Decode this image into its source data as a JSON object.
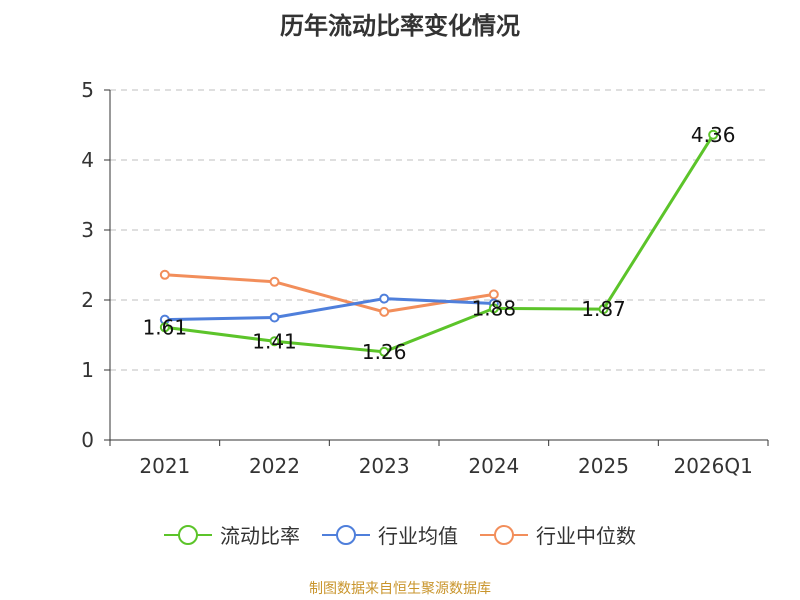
{
  "chart_data": {
    "type": "line",
    "title": "历年流动比率变化情况",
    "categories": [
      "2021",
      "2022",
      "2023",
      "2024",
      "2025",
      "2026Q1"
    ],
    "ylim": [
      0,
      5
    ],
    "yticks": [
      0,
      1,
      2,
      3,
      4,
      5
    ],
    "grid": true,
    "legend_position": "bottom",
    "series": [
      {
        "name": "流动比率",
        "color": "#5cc42a",
        "values": [
          1.61,
          1.41,
          1.26,
          1.88,
          1.87,
          4.36
        ],
        "labels": [
          "1.61",
          "1.41",
          "1.26",
          "1.88",
          "1.87",
          "4.36"
        ]
      },
      {
        "name": "行业均值",
        "color": "#4f7fdb",
        "values": [
          1.72,
          1.75,
          2.02,
          1.95,
          null,
          null
        ]
      },
      {
        "name": "行业中位数",
        "color": "#f28e5b",
        "values": [
          2.36,
          2.26,
          1.83,
          2.08,
          null,
          null
        ]
      }
    ]
  },
  "source": "制图数据来自恒生聚源数据库"
}
